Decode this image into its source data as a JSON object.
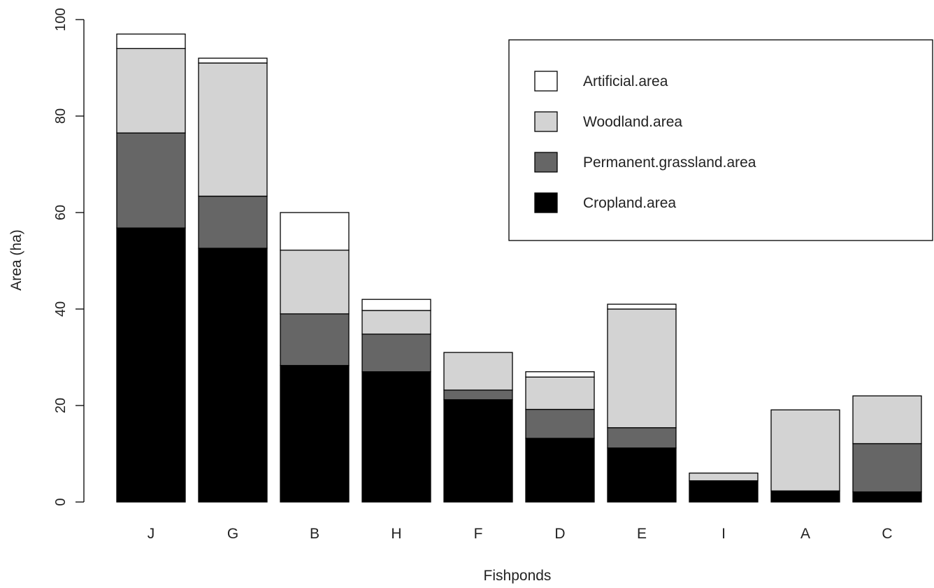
{
  "chart_data": {
    "type": "bar",
    "stacked": true,
    "title": "",
    "xlabel": "Fishponds",
    "ylabel": "Area (ha)",
    "ylim": [
      0,
      100
    ],
    "yticks": [
      "0",
      "20",
      "40",
      "60",
      "80",
      "100"
    ],
    "grid": false,
    "legend_position": "top-right",
    "categories": [
      "J",
      "G",
      "B",
      "H",
      "F",
      "D",
      "E",
      "I",
      "A",
      "C"
    ],
    "series": [
      {
        "name": "Cropland.area",
        "color": "#000000",
        "values": [
          56.8,
          52.6,
          28.3,
          27.0,
          21.2,
          13.2,
          11.2,
          4.4,
          2.3,
          2.1
        ]
      },
      {
        "name": "Permanent.grassland.area",
        "color": "#666666",
        "values": [
          19.7,
          10.8,
          10.7,
          7.8,
          2.0,
          6.0,
          4.2,
          0,
          0,
          10.0
        ]
      },
      {
        "name": "Woodland.area",
        "color": "#d3d3d3",
        "values": [
          17.5,
          27.6,
          13.2,
          4.9,
          7.8,
          6.7,
          24.6,
          1.6,
          16.8,
          9.9
        ]
      },
      {
        "name": "Artificial.area",
        "color": "#ffffff",
        "values": [
          3.0,
          1.0,
          7.8,
          2.3,
          0,
          1.1,
          1.0,
          0,
          0,
          0
        ]
      }
    ],
    "legend_order": [
      "Artificial.area",
      "Woodland.area",
      "Permanent.grassland.area",
      "Cropland.area"
    ]
  }
}
